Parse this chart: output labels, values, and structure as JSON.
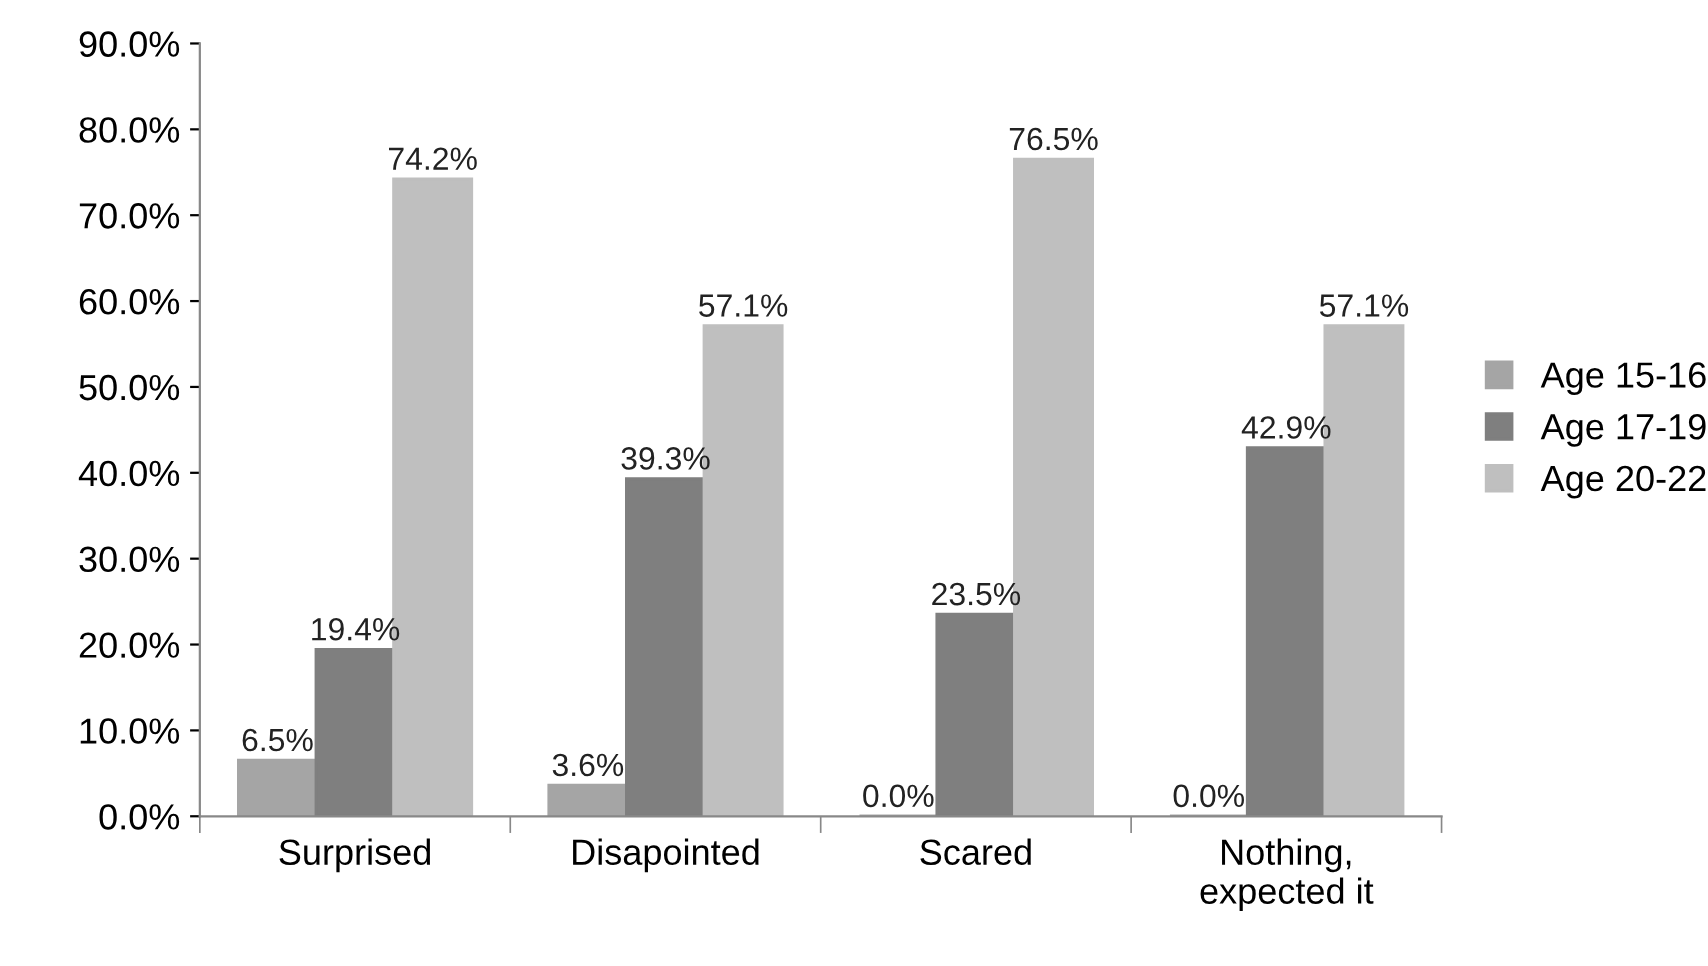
{
  "chart_data": {
    "type": "bar",
    "categories": [
      "Surprised",
      "Disapointed",
      "Scared",
      "Nothing,\nexpected it"
    ],
    "series": [
      {
        "name": "Age 15-16",
        "color": "#a5a5a5",
        "values": [
          6.5,
          3.6,
          0.0,
          0.0
        ],
        "value_labels": [
          "6.5%",
          "3.6%",
          "0.0%",
          "0.0%"
        ]
      },
      {
        "name": "Age 17-19",
        "color": "#7f7f7f",
        "values": [
          19.4,
          39.3,
          23.5,
          42.9
        ],
        "value_labels": [
          "19.4%",
          "39.3%",
          "23.5%",
          "42.9%"
        ]
      },
      {
        "name": "Age 20-22",
        "color": "#bfbfbf",
        "values": [
          74.2,
          57.1,
          76.5,
          57.1
        ],
        "value_labels": [
          "74.2%",
          "57.1%",
          "76.5%",
          "57.1%"
        ]
      }
    ],
    "ylim": [
      0,
      90
    ],
    "yticks": [
      {
        "value": 0,
        "label": "0.0%"
      },
      {
        "value": 10,
        "label": "10.0%"
      },
      {
        "value": 20,
        "label": "20.0%"
      },
      {
        "value": 30,
        "label": "30.0%"
      },
      {
        "value": 40,
        "label": "40.0%"
      },
      {
        "value": 50,
        "label": "50.0%"
      },
      {
        "value": 60,
        "label": "60.0%"
      },
      {
        "value": 70,
        "label": "70.0%"
      },
      {
        "value": 80,
        "label": "80.0%"
      },
      {
        "value": 90,
        "label": "90.0%"
      }
    ],
    "grid": false,
    "legend": "right"
  }
}
